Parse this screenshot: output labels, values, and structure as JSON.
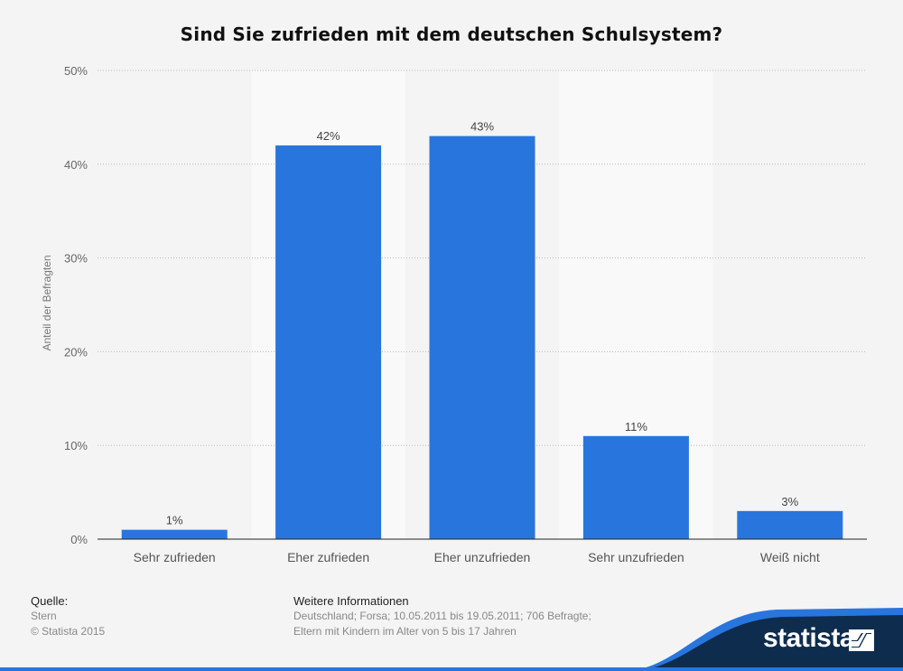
{
  "chart_data": {
    "type": "bar",
    "title": "Sind Sie zufrieden mit dem deutschen Schulsystem?",
    "ylabel": "Anteil der Befragten",
    "xlabel": "",
    "categories": [
      "Sehr zufrieden",
      "Eher zufrieden",
      "Eher unzufrieden",
      "Sehr unzufrieden",
      "Weiß nicht"
    ],
    "values": [
      1,
      42,
      43,
      11,
      3
    ],
    "value_labels": [
      "1%",
      "42%",
      "43%",
      "11%",
      "3%"
    ],
    "ylim": [
      0,
      50
    ],
    "yticks": [
      0,
      10,
      20,
      30,
      40,
      50
    ],
    "ytick_labels": [
      "0%",
      "10%",
      "20%",
      "30%",
      "40%",
      "50%"
    ],
    "grid": true,
    "bar_color": "#2876dd"
  },
  "footer": {
    "source_heading": "Quelle:",
    "source_lines": [
      "Stern",
      "© Statista 2015"
    ],
    "info_heading": "Weitere Informationen",
    "info_lines": [
      "Deutschland; Forsa; 10.05.2011 bis 19.05.2011; 706 Befragte;",
      "Eltern mit Kindern im Alter von 5 bis 17 Jahren"
    ]
  },
  "brand": {
    "name": "statista",
    "icon": "statista-logo-icon",
    "color": "#0e2c4e",
    "accent": "#2876dd"
  }
}
